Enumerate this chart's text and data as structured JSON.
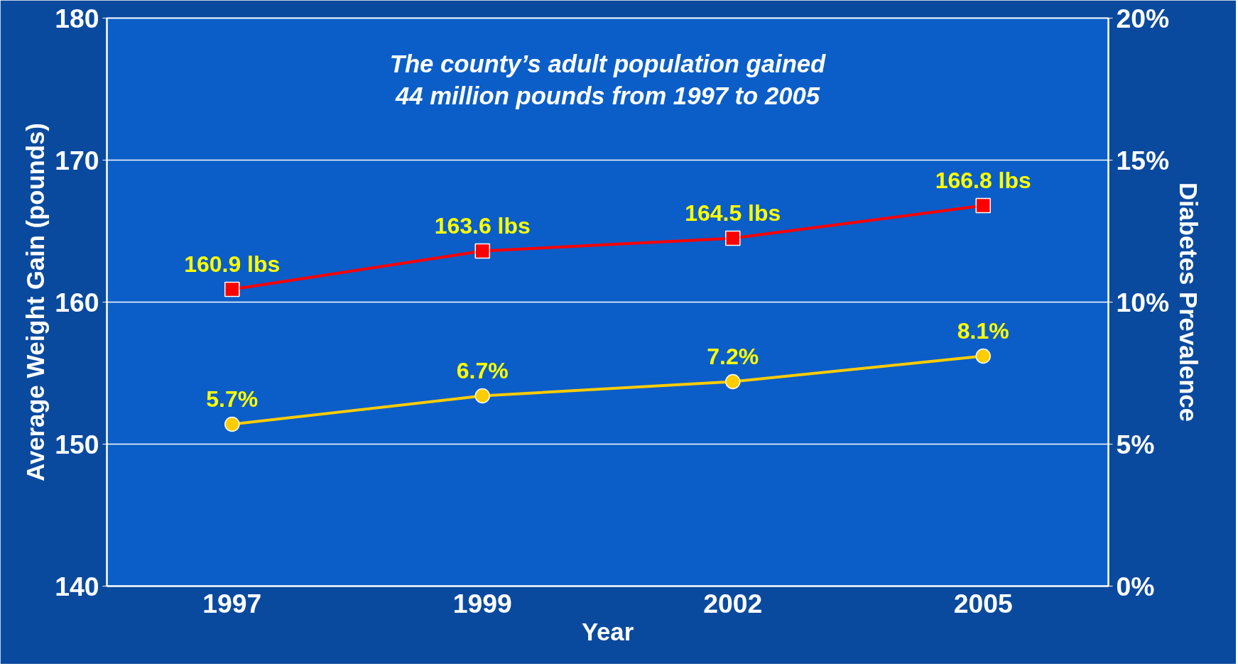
{
  "chart_data": {
    "type": "line",
    "annotations": [
      "The county’s adult population gained\n44 million pounds from 1997 to 2005"
    ],
    "xlabel": "Year",
    "ylabel": "Average Weight Gain (pounds)",
    "y2label": "Diabetes Prevalence",
    "categories": [
      "1997",
      "1999",
      "2002",
      "2005"
    ],
    "series": [
      {
        "color": "#ff0000",
        "marker": "square",
        "values": [
          160.9,
          163.6,
          164.5,
          166.8
        ],
        "value_labels": [
          "160.9 lbs",
          "163.6 lbs",
          "164.5 lbs",
          "166.8 lbs"
        ]
      },
      {
        "color": "#ffcc00",
        "marker": "circle",
        "axis": "y2",
        "values": [
          5.7,
          6.7,
          7.2,
          8.1
        ],
        "value_labels": [
          "5.7%",
          "6.7%",
          "7.2%",
          "8.1%"
        ]
      }
    ],
    "ylim": [
      140,
      180
    ],
    "yticks": [
      140,
      150,
      160,
      170,
      180
    ],
    "y2lim": [
      0,
      20
    ],
    "y2ticks": [
      {
        "value": 0,
        "label": "0%"
      },
      {
        "value": 5,
        "label": "5%"
      },
      {
        "value": 10,
        "label": "10%"
      },
      {
        "value": 15,
        "label": "15%"
      },
      {
        "value": 20,
        "label": "20%"
      }
    ],
    "grid": "y"
  }
}
